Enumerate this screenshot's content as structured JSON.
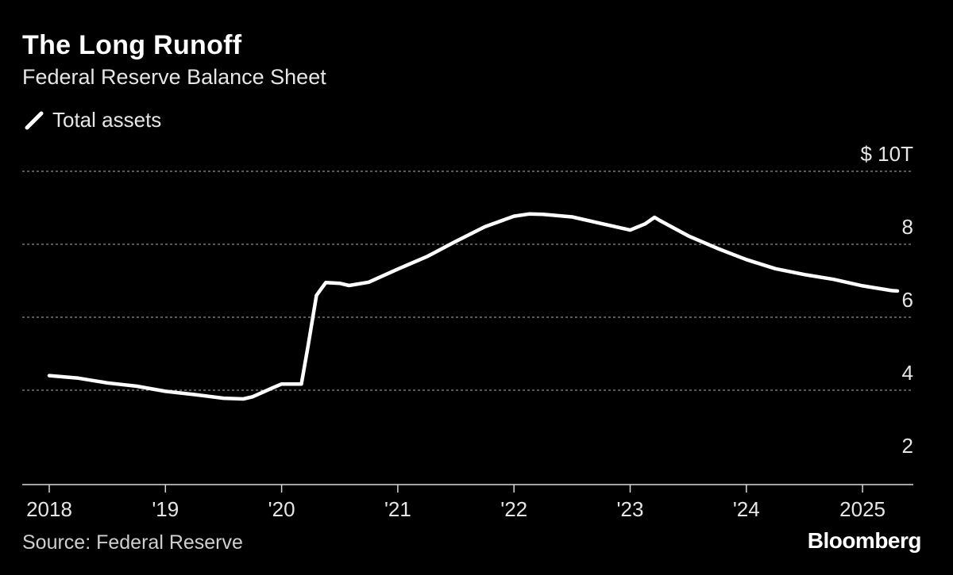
{
  "title": "The Long Runoff",
  "subtitle": "Federal Reserve Balance Sheet",
  "legend_label": "Total assets",
  "source": "Source: Federal Reserve",
  "brand": "Bloomberg",
  "colors": {
    "background": "#000000",
    "line": "#ffffff",
    "grid": "#8c8c8c"
  },
  "chart_data": {
    "type": "line",
    "title": "The Long Runoff",
    "subtitle": "Federal Reserve Balance Sheet",
    "x_tick_labels": [
      "2018",
      "'19",
      "'20",
      "'21",
      "'22",
      "'23",
      "'24",
      "2025"
    ],
    "x_tick_values": [
      2018,
      2019,
      2020,
      2021,
      2022,
      2023,
      2024,
      2025
    ],
    "y_ticks": [
      {
        "value": 10,
        "label": "$ 10T"
      },
      {
        "value": 8,
        "label": "8"
      },
      {
        "value": 6,
        "label": "6"
      },
      {
        "value": 4,
        "label": "4"
      },
      {
        "value": 2,
        "label": "2"
      }
    ],
    "ylim": [
      1.5,
      10.2
    ],
    "xlim": [
      2017.75,
      2025.9
    ],
    "grid": true,
    "legend_position": "top-left",
    "series": [
      {
        "name": "Total assets",
        "x": [
          2018.0,
          2018.25,
          2018.5,
          2018.75,
          2019.0,
          2019.25,
          2019.5,
          2019.67,
          2019.75,
          2019.92,
          2020.0,
          2020.08,
          2020.17,
          2020.23,
          2020.3,
          2020.38,
          2020.5,
          2020.58,
          2020.75,
          2021.0,
          2021.25,
          2021.5,
          2021.75,
          2022.0,
          2022.13,
          2022.25,
          2022.5,
          2022.75,
          2023.0,
          2023.13,
          2023.21,
          2023.25,
          2023.5,
          2023.75,
          2024.0,
          2024.25,
          2024.5,
          2024.75,
          2025.0,
          2025.25,
          2025.3
        ],
        "values": [
          4.4,
          4.33,
          4.2,
          4.11,
          3.97,
          3.88,
          3.78,
          3.76,
          3.82,
          4.06,
          4.17,
          4.17,
          4.17,
          5.25,
          6.6,
          6.95,
          6.93,
          6.87,
          6.96,
          7.32,
          7.66,
          8.08,
          8.48,
          8.77,
          8.83,
          8.82,
          8.75,
          8.57,
          8.39,
          8.56,
          8.74,
          8.66,
          8.23,
          7.89,
          7.58,
          7.33,
          7.17,
          7.04,
          6.86,
          6.73,
          6.72
        ]
      }
    ]
  }
}
